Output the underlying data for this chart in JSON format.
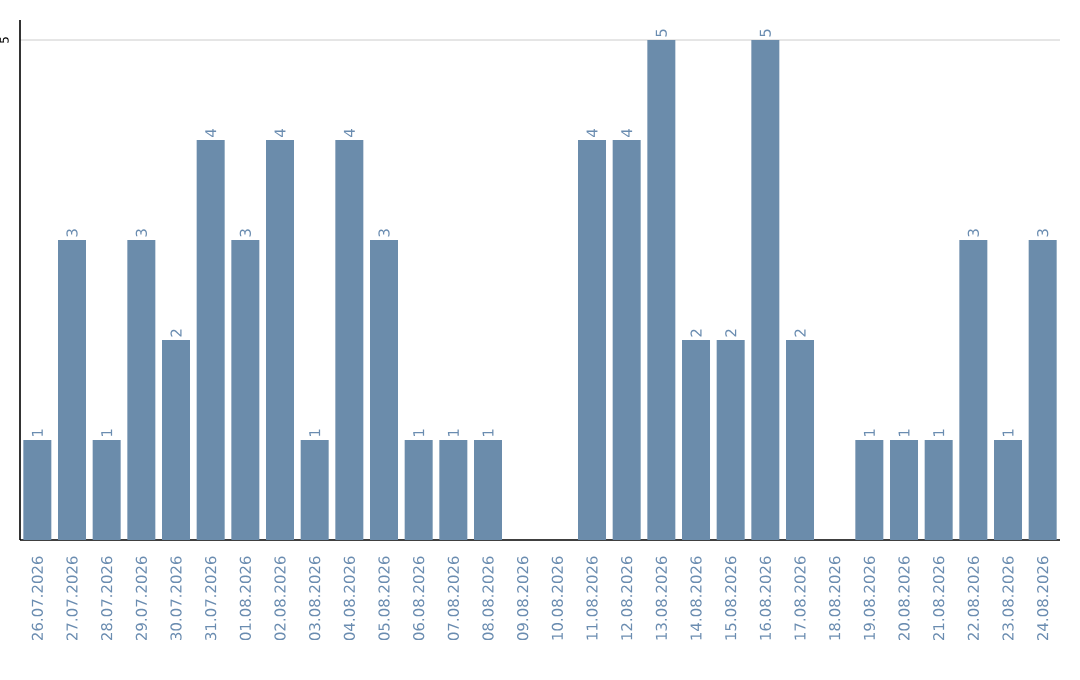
{
  "chart_data": {
    "type": "bar",
    "categories": [
      "26.07.2026",
      "27.07.2026",
      "28.07.2026",
      "29.07.2026",
      "30.07.2026",
      "31.07.2026",
      "01.08.2026",
      "02.08.2026",
      "03.08.2026",
      "04.08.2026",
      "05.08.2026",
      "06.08.2026",
      "07.08.2026",
      "08.08.2026",
      "09.08.2026",
      "10.08.2026",
      "11.08.2026",
      "12.08.2026",
      "13.08.2026",
      "14.08.2026",
      "15.08.2026",
      "16.08.2026",
      "17.08.2026",
      "18.08.2026",
      "19.08.2026",
      "20.08.2026",
      "21.08.2026",
      "22.08.2026",
      "23.08.2026",
      "24.08.2026"
    ],
    "values": [
      1,
      3,
      1,
      3,
      2,
      4,
      3,
      4,
      1,
      4,
      3,
      1,
      1,
      1,
      null,
      null,
      4,
      4,
      5,
      2,
      2,
      5,
      2,
      null,
      1,
      1,
      1,
      3,
      1,
      3
    ],
    "color": "#6b8cab",
    "ylim": [
      0,
      5.2
    ],
    "yticks": [
      5
    ],
    "grid": "y",
    "data_labels": true
  }
}
